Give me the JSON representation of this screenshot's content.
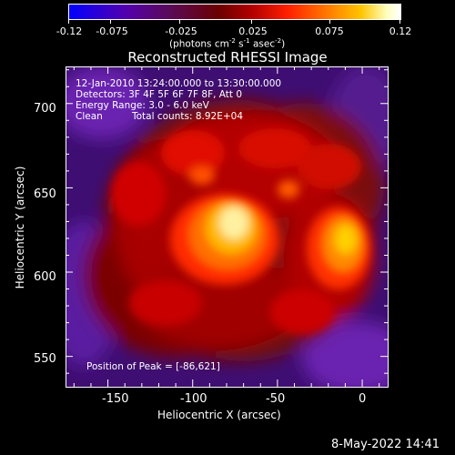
{
  "colorbar": {
    "ticks": [
      "-0.12",
      "-0.075",
      "-0.025",
      "0.025",
      "0.075",
      "0.12"
    ],
    "unit_main": "(photons cm",
    "unit_sup1": "-2",
    "unit_s": " s",
    "unit_sup2": "-1",
    "unit_asec": " asec",
    "unit_sup3": "-2",
    "unit_end": ")"
  },
  "image": {
    "title": "Reconstructed RHESSI Image",
    "time_range": "12-Jan-2010 13:24:00.000 to 13:30:00.000",
    "detectors": "Detectors: 3F 4F 5F 6F 7F 8F, Att 0",
    "energy_range": "Energy Range: 3.0 - 6.0 keV",
    "algorithm": "Clean",
    "total_counts": "Total counts: 8.92E+04",
    "peak_position": "Position of Peak = [-86,621]"
  },
  "axes": {
    "xlabel": "Heliocentric X (arcsec)",
    "ylabel": "Heliocentric Y (arcsec)",
    "xticks": [
      "-150",
      "-100",
      "-50",
      "0"
    ],
    "yticks": [
      "700",
      "650",
      "600",
      "550"
    ],
    "x_values": [
      -150,
      -100,
      -50,
      0
    ],
    "y_values": [
      700,
      650,
      600,
      550
    ],
    "xlim": [
      -175,
      15
    ],
    "ylim": [
      532,
      722
    ]
  },
  "footer": {
    "datetime": "8-May-2022 14:41"
  },
  "colors": {
    "colormap": [
      "#0000ff",
      "#5500aa",
      "#7a1a1a",
      "#cc0000",
      "#ff6000",
      "#ffc000",
      "#ffffff"
    ]
  }
}
